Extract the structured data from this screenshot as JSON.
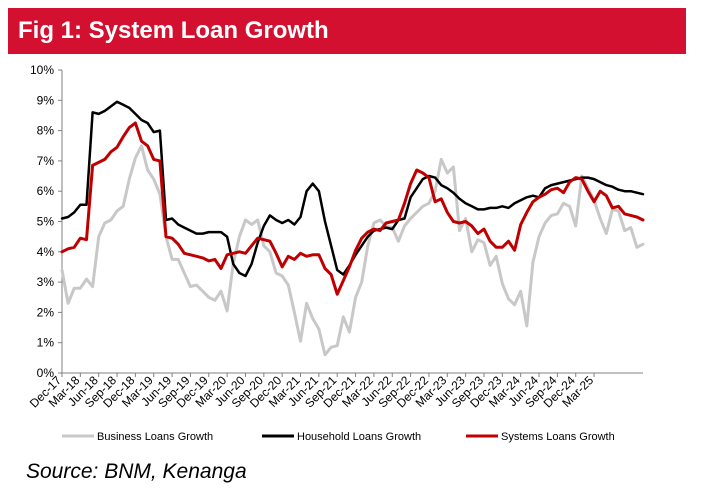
{
  "header": {
    "title": "Fig 1: System Loan Growth"
  },
  "source": "Source: BNM, Kenanga",
  "chart_data": {
    "type": "line",
    "title": "Fig 1: System Loan Growth",
    "xlabel": "",
    "ylabel": "",
    "ylim": [
      0,
      10
    ],
    "y_ticks": [
      "0%",
      "1%",
      "2%",
      "3%",
      "4%",
      "5%",
      "6%",
      "7%",
      "8%",
      "9%",
      "10%"
    ],
    "x_tick_labels": [
      "Dec-17",
      "Mar-18",
      "Jun-18",
      "Sep-18",
      "Dec-18",
      "Mar-19",
      "Jun-19",
      "Sep-19",
      "Dec-19",
      "Mar-20",
      "Jun-20",
      "Sep-20",
      "Dec-20",
      "Mar-21",
      "Jun-21",
      "Sep-21",
      "Dec-21",
      "Mar-22",
      "Jun-22",
      "Sep-22",
      "Dec-22",
      "Mar-23",
      "Jun-23",
      "Sep-23",
      "Dec-23",
      "Mar-24",
      "Jun-24",
      "Sep-24",
      "Dec-24",
      "Mar-25"
    ],
    "x_start": "Dec-17",
    "x_end": "May-25",
    "grid": false,
    "legend_position": "bottom",
    "series": [
      {
        "name": "Business Loans Growth",
        "color": "#c8c8c8",
        "values": [
          3.4,
          2.3,
          2.8,
          2.8,
          3.1,
          2.85,
          4.5,
          4.95,
          5.05,
          5.35,
          5.5,
          6.4,
          7.1,
          7.5,
          6.7,
          6.4,
          5.9,
          4.5,
          3.75,
          3.75,
          3.3,
          2.85,
          2.9,
          2.7,
          2.5,
          2.4,
          2.7,
          2.05,
          3.6,
          4.5,
          5.05,
          4.9,
          5.05,
          4.2,
          4.0,
          3.3,
          3.2,
          2.9,
          2.0,
          1.05,
          2.3,
          1.8,
          1.45,
          0.6,
          0.85,
          0.9,
          1.85,
          1.35,
          2.5,
          3.0,
          4.2,
          4.95,
          5.05,
          4.85,
          4.8,
          4.35,
          4.85,
          5.1,
          5.3,
          5.5,
          5.6,
          6.0,
          7.05,
          6.6,
          6.8,
          4.7,
          5.1,
          4.0,
          4.4,
          4.3,
          3.55,
          3.85,
          2.95,
          2.45,
          2.25,
          2.7,
          1.55,
          3.65,
          4.5,
          4.95,
          5.2,
          5.25,
          5.6,
          5.5,
          4.85,
          6.5,
          6.1,
          5.7,
          5.1,
          4.6,
          5.4,
          5.35,
          4.7,
          4.8,
          4.15,
          4.25
        ]
      },
      {
        "name": "Household Loans Growth",
        "color": "#000000",
        "values": [
          5.1,
          5.15,
          5.3,
          5.55,
          5.55,
          8.6,
          8.55,
          8.65,
          8.8,
          8.95,
          8.85,
          8.75,
          8.55,
          8.35,
          8.25,
          7.95,
          8.0,
          5.05,
          5.1,
          4.9,
          4.8,
          4.7,
          4.6,
          4.6,
          4.65,
          4.65,
          4.65,
          4.5,
          3.6,
          3.3,
          3.2,
          3.6,
          4.3,
          4.85,
          5.2,
          5.05,
          4.95,
          5.05,
          4.9,
          5.15,
          6.0,
          6.25,
          6.0,
          5.0,
          4.2,
          3.4,
          3.25,
          3.55,
          3.9,
          4.2,
          4.5,
          4.7,
          4.75,
          4.8,
          4.75,
          5.05,
          5.1,
          5.8,
          6.1,
          6.4,
          6.5,
          6.45,
          6.2,
          6.1,
          5.95,
          5.75,
          5.6,
          5.5,
          5.4,
          5.4,
          5.45,
          5.45,
          5.5,
          5.45,
          5.6,
          5.7,
          5.8,
          5.85,
          5.8,
          6.1,
          6.2,
          6.25,
          6.3,
          6.35,
          6.4,
          6.45,
          6.45,
          6.4,
          6.3,
          6.2,
          6.15,
          6.05,
          6.0,
          6.0,
          5.95,
          5.9
        ]
      },
      {
        "name": "Systems Loans Growth",
        "color": "#c00000",
        "values": [
          4.0,
          4.1,
          4.15,
          4.45,
          4.4,
          6.85,
          6.95,
          7.05,
          7.3,
          7.45,
          7.8,
          8.1,
          8.25,
          7.65,
          7.5,
          7.05,
          7.0,
          4.5,
          4.45,
          4.25,
          3.95,
          3.9,
          3.85,
          3.8,
          3.7,
          3.75,
          3.45,
          3.9,
          3.95,
          4.0,
          3.95,
          4.2,
          4.45,
          4.4,
          4.35,
          3.95,
          3.5,
          3.85,
          3.75,
          3.95,
          3.85,
          3.9,
          3.9,
          3.45,
          3.25,
          2.6,
          3.05,
          3.5,
          4.05,
          4.45,
          4.65,
          4.75,
          4.7,
          4.95,
          5.0,
          5.05,
          5.6,
          6.25,
          6.7,
          6.6,
          6.45,
          5.65,
          5.75,
          5.3,
          5.0,
          4.95,
          5.0,
          4.85,
          4.6,
          4.75,
          4.35,
          4.15,
          4.15,
          4.35,
          4.05,
          4.9,
          5.3,
          5.65,
          5.8,
          5.9,
          6.05,
          6.1,
          5.95,
          6.3,
          6.45,
          6.4,
          6.0,
          5.65,
          6.0,
          5.85,
          5.45,
          5.5,
          5.25,
          5.2,
          5.15,
          5.05
        ]
      }
    ]
  }
}
